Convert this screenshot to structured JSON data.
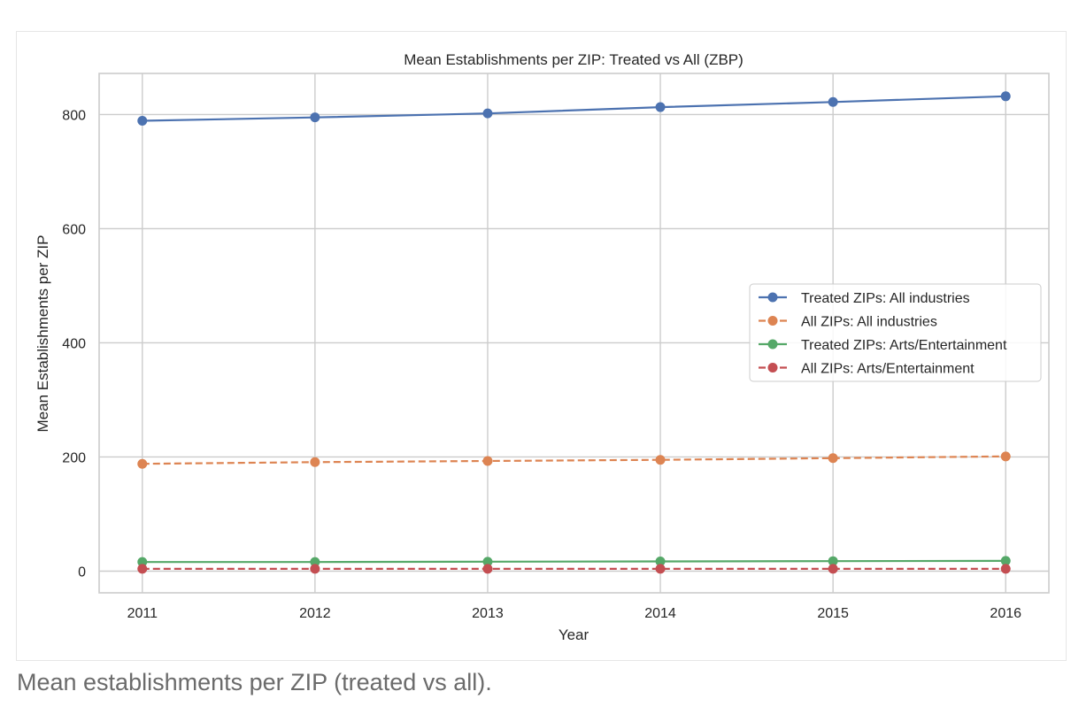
{
  "caption": "Mean establishments per ZIP (treated vs all).",
  "chart_data": {
    "type": "line",
    "title": "Mean Establishments per ZIP: Treated vs All (ZBP)",
    "xlabel": "Year",
    "ylabel": "Mean Establishments per ZIP",
    "x": [
      2011,
      2012,
      2013,
      2014,
      2015,
      2016
    ],
    "x_tick_labels": [
      "2011",
      "2012",
      "2013",
      "2014",
      "2015",
      "2016"
    ],
    "xlim": [
      2010.75,
      2016.25
    ],
    "ylim": [
      -38,
      872
    ],
    "y_ticks": [
      0,
      200,
      400,
      600,
      800
    ],
    "y_tick_labels": [
      "0",
      "200",
      "400",
      "600",
      "800"
    ],
    "grid": true,
    "legend_position": "center-right",
    "series": [
      {
        "name": "Treated ZIPs: All industries",
        "values": [
          789,
          795,
          802,
          813,
          822,
          832
        ],
        "color": "#4c72b0",
        "dashed": false
      },
      {
        "name": "All ZIPs: All industries",
        "values": [
          188,
          191,
          193,
          195,
          198,
          201
        ],
        "color": "#dd8452",
        "dashed": true
      },
      {
        "name": "Treated ZIPs: Arts/Entertainment",
        "values": [
          16,
          16,
          16.5,
          17,
          17.5,
          18
        ],
        "color": "#55a868",
        "dashed": false
      },
      {
        "name": "All ZIPs: Arts/Entertainment",
        "values": [
          4,
          4,
          4,
          4,
          4,
          4
        ],
        "color": "#c44e52",
        "dashed": true
      }
    ]
  }
}
